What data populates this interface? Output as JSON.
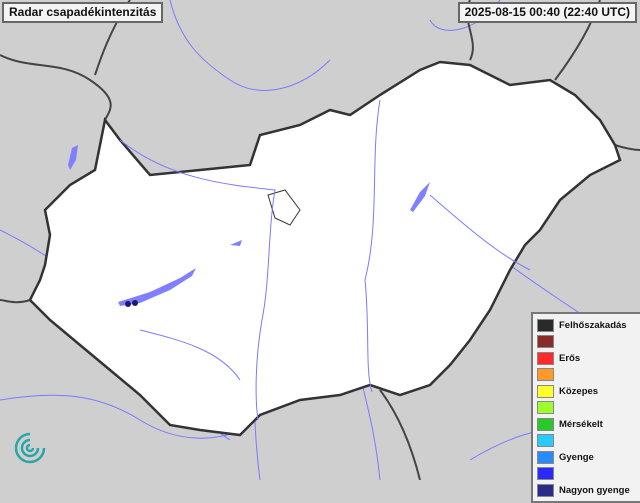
{
  "title": "Radar csapadékintenzitás",
  "timestamp": "2025-08-15 00:40 (22:40 UTC)",
  "legend": [
    {
      "label": "Felhőszakadás",
      "color": "#2a2a2a"
    },
    {
      "label": "",
      "color": "#8b2a2a"
    },
    {
      "label": "Erős",
      "color": "#ff2a2a"
    },
    {
      "label": "",
      "color": "#ff9a2a"
    },
    {
      "label": "Közepes",
      "color": "#ffff2a"
    },
    {
      "label": "",
      "color": "#9aff2a"
    },
    {
      "label": "Mérsékelt",
      "color": "#2ac82a"
    },
    {
      "label": "",
      "color": "#2acaff"
    },
    {
      "label": "Gyenge",
      "color": "#2a8aff"
    },
    {
      "label": "",
      "color": "#2a2aff"
    },
    {
      "label": "Nagyon gyenge",
      "color": "#2a2a8a"
    }
  ],
  "colors": {
    "water": "#8080ff",
    "country": "#ffffff",
    "surroundings": "#cfcfcf",
    "border": "#333333"
  }
}
